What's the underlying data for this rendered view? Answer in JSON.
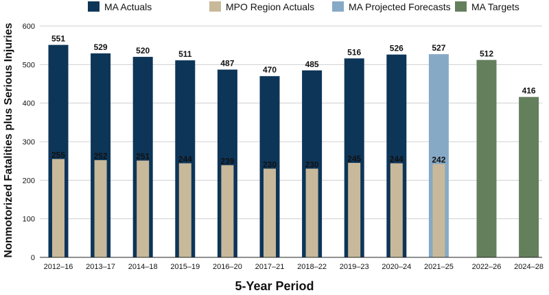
{
  "chart_data": {
    "type": "bar",
    "title": "",
    "xlabel": "5-Year Period",
    "ylabel": "Nonmotorized Fatalities plus Serious Injuries",
    "ylim": [
      0,
      600
    ],
    "yticks": [
      0,
      100,
      200,
      300,
      400,
      500,
      600
    ],
    "grid": true,
    "legend_placement": "top",
    "categories": [
      "2012–16",
      "2013–17",
      "2014–18",
      "2015–19",
      "2016–20",
      "2017–21",
      "2018–22",
      "2019–23",
      "2020–24",
      "2021–25",
      "2022–26",
      "2024–28"
    ],
    "series": [
      {
        "name": "MA Actuals",
        "color": "#0d3558",
        "values": [
          551,
          529,
          520,
          511,
          487,
          470,
          485,
          516,
          526,
          null,
          null,
          null
        ]
      },
      {
        "name": "MPO Region Actuals",
        "color": "#c8b99a",
        "values": [
          255,
          252,
          251,
          244,
          239,
          230,
          230,
          245,
          244,
          242,
          null,
          null
        ]
      },
      {
        "name": "MA Projected Forecasts",
        "color": "#86a9c6",
        "values": [
          null,
          null,
          null,
          null,
          null,
          null,
          null,
          null,
          null,
          527,
          null,
          null
        ]
      },
      {
        "name": "MA Targets",
        "color": "#647f5c",
        "values": [
          null,
          null,
          null,
          null,
          null,
          null,
          null,
          null,
          null,
          null,
          512,
          416
        ]
      }
    ]
  }
}
